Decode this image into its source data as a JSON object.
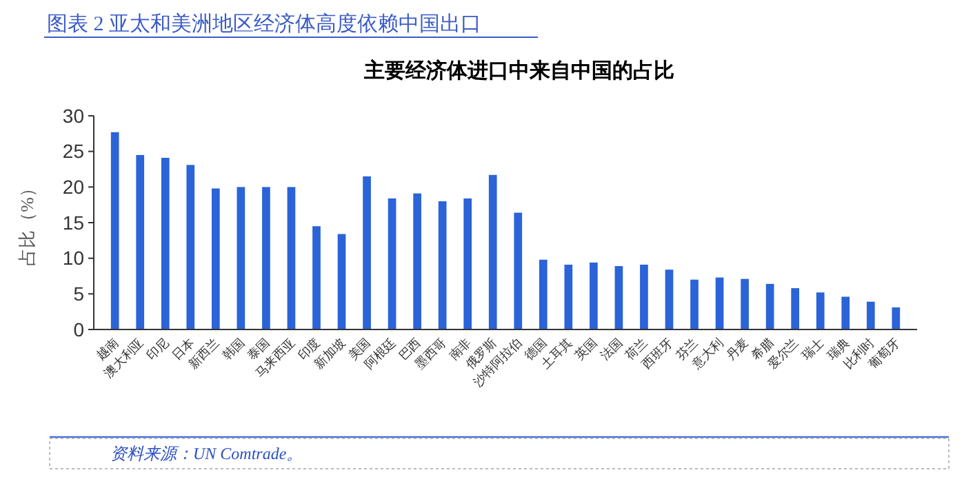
{
  "chart_data": {
    "type": "bar",
    "title": "图表 2 亚太和美洲地区经济体高度依赖中国出口",
    "subtitle": "主要经济体进口中来自中国的占比",
    "ylabel": "占比（%）",
    "categories": [
      "越南",
      "澳大利亚",
      "印尼",
      "日本",
      "新西兰",
      "韩国",
      "泰国",
      "马来西亚",
      "印度",
      "新加坡",
      "美国",
      "阿根廷",
      "巴西",
      "墨西哥",
      "南非",
      "俄罗斯",
      "沙特阿拉伯",
      "德国",
      "土耳其",
      "英国",
      "法国",
      "荷兰",
      "西班牙",
      "芬兰",
      "意大利",
      "丹麦",
      "希腊",
      "爱尔兰",
      "瑞士",
      "瑞典",
      "比利时",
      "葡萄牙"
    ],
    "values": [
      27.7,
      24.5,
      24.1,
      23.1,
      19.8,
      20.0,
      20.0,
      20.0,
      14.5,
      13.4,
      21.5,
      18.4,
      19.1,
      18.0,
      18.4,
      21.7,
      16.4,
      9.8,
      9.1,
      9.4,
      8.9,
      9.1,
      8.4,
      7.0,
      7.3,
      7.1,
      6.4,
      5.8,
      5.2,
      4.6,
      3.9,
      3.1
    ],
    "color": "#2b63d8",
    "ylim": [
      0,
      30
    ],
    "yticks": [
      0,
      5,
      10,
      15,
      20,
      25,
      30
    ],
    "grid": false,
    "annotations": [
      "资料来源：UN Comtrade。"
    ]
  }
}
